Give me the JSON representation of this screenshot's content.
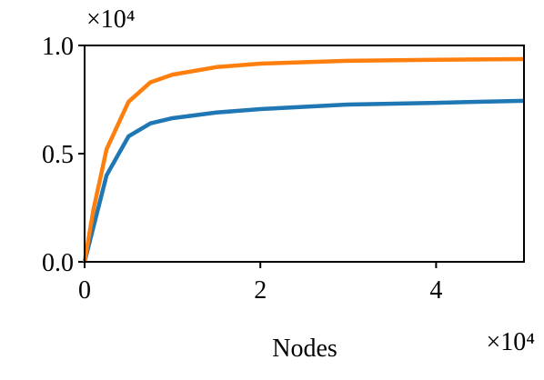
{
  "chart_data": {
    "type": "line",
    "x_label": "Nodes",
    "x_offset_label": "×10⁴",
    "y_offset_label": "×10⁴",
    "x": [
      0,
      0.1,
      0.25,
      0.5,
      0.75,
      1,
      1.5,
      2,
      3,
      4,
      5
    ],
    "series": [
      {
        "color": "#1f77b4",
        "values": [
          0,
          0.16,
          0.4,
          0.58,
          0.64,
          0.664,
          0.69,
          0.706,
          0.727,
          0.735,
          0.744
        ]
      },
      {
        "color": "#ff7f0e",
        "values": [
          0,
          0.24,
          0.52,
          0.74,
          0.83,
          0.865,
          0.9,
          0.916,
          0.929,
          0.934,
          0.937
        ]
      }
    ],
    "xlim": [
      0,
      5
    ],
    "xticks": [
      0,
      2,
      4
    ],
    "ylim": [
      0,
      1
    ],
    "yticks": [
      {
        "value": 0,
        "label": "0.0"
      },
      {
        "value": 0.5,
        "label": "0.5"
      },
      {
        "value": 1,
        "label": "1.0"
      }
    ],
    "grid": false
  }
}
